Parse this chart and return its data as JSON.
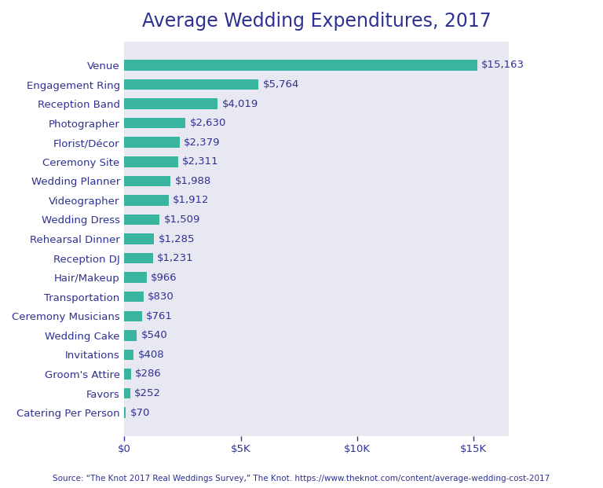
{
  "title": "Average Wedding Expenditures, 2017",
  "source": "Source: “The Knot 2017 Real Weddings Survey,” The Knot. https://www.theknot.com/content/average-wedding-cost-2017",
  "categories": [
    "Catering Per Person",
    "Favors",
    "Groom's Attire",
    "Invitations",
    "Wedding Cake",
    "Ceremony Musicians",
    "Transportation",
    "Hair/Makeup",
    "Reception DJ",
    "Rehearsal Dinner",
    "Wedding Dress",
    "Videographer",
    "Wedding Planner",
    "Ceremony Site",
    "Florist/Décor",
    "Photographer",
    "Reception Band",
    "Engagement Ring",
    "Venue"
  ],
  "values": [
    70,
    252,
    286,
    408,
    540,
    761,
    830,
    966,
    1231,
    1285,
    1509,
    1912,
    1988,
    2311,
    2379,
    2630,
    4019,
    5764,
    15163
  ],
  "bar_color": "#3ab5a0",
  "plot_bg_color": "#e8e8f2",
  "fig_bg_color": "#ffffff",
  "text_color": "#2e3192",
  "title_fontsize": 17,
  "label_fontsize": 9.5,
  "value_fontsize": 9.5,
  "source_fontsize": 7.5,
  "xlim": [
    0,
    16500
  ],
  "xticks": [
    0,
    5000,
    10000,
    15000
  ],
  "xticklabels": [
    "$0",
    "$5K",
    "$10K",
    "$15K"
  ]
}
